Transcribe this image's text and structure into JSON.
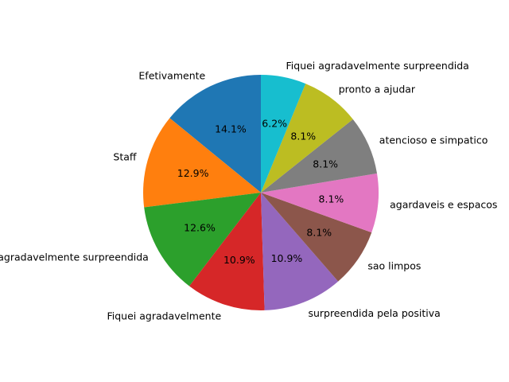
{
  "chart_data": {
    "type": "pie",
    "start_angle_deg": 90,
    "direction": "counterclockwise",
    "slices": [
      {
        "label": "Efetivamente",
        "value": 14.1,
        "pct_label": "14.1%",
        "color": "#1f77b4"
      },
      {
        "label": "Staff",
        "value": 12.9,
        "pct_label": "12.9%",
        "color": "#ff7f0e"
      },
      {
        "label": "agradavelmente surpreendida",
        "value": 12.6,
        "pct_label": "12.6%",
        "color": "#2ca02c"
      },
      {
        "label": "Fiquei agradavelmente",
        "value": 10.9,
        "pct_label": "10.9%",
        "color": "#d62728"
      },
      {
        "label": "surpreendida pela positiva",
        "value": 10.9,
        "pct_label": "10.9%",
        "color": "#9467bd"
      },
      {
        "label": "sao limpos",
        "value": 8.1,
        "pct_label": "8.1%",
        "color": "#8c564b"
      },
      {
        "label": "agardaveis e espacos",
        "value": 8.1,
        "pct_label": "8.1%",
        "color": "#e377c2"
      },
      {
        "label": "atencioso e simpatico",
        "value": 8.1,
        "pct_label": "8.1%",
        "color": "#7f7f7f"
      },
      {
        "label": "pronto a ajudar",
        "value": 8.1,
        "pct_label": "8.1%",
        "color": "#bcbd22"
      },
      {
        "label": "Fiquei agradavelmente surpreendida",
        "value": 6.2,
        "pct_label": "6.2%",
        "color": "#17becf"
      }
    ]
  }
}
